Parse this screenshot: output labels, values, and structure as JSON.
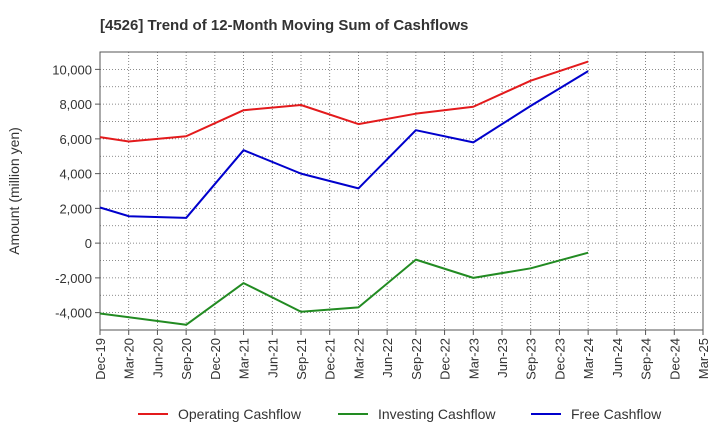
{
  "chart_data": {
    "type": "line",
    "title": "[4526]  Trend of 12-Month Moving Sum of Cashflows",
    "xlabel": "",
    "ylabel": "Amount (million yen)",
    "ylim": [
      -5000,
      11000
    ],
    "yticks": [
      -4000,
      -2000,
      0,
      2000,
      4000,
      6000,
      8000,
      10000
    ],
    "ytick_labels": [
      "-4,000",
      "-2,000",
      "0",
      "2,000",
      "4,000",
      "6,000",
      "8,000",
      "10,000"
    ],
    "categories": [
      "Dec-19",
      "Mar-20",
      "Jun-20",
      "Sep-20",
      "Dec-20",
      "Mar-21",
      "Jun-21",
      "Sep-21",
      "Dec-21",
      "Mar-22",
      "Jun-22",
      "Sep-22",
      "Dec-22",
      "Mar-23",
      "Jun-23",
      "Sep-23",
      "Dec-23",
      "Mar-24",
      "Jun-24",
      "Sep-24",
      "Dec-24",
      "Mar-25"
    ],
    "grid": true,
    "legend_position": "bottom",
    "series": [
      {
        "name": "Operating Cashflow",
        "color": "#e31a1c",
        "points": [
          [
            0,
            6100
          ],
          [
            1,
            5850
          ],
          [
            3,
            6150
          ],
          [
            5,
            7650
          ],
          [
            7,
            7950
          ],
          [
            9,
            6850
          ],
          [
            11,
            7450
          ],
          [
            13,
            7850
          ],
          [
            15,
            9350
          ],
          [
            17,
            10450
          ]
        ]
      },
      {
        "name": "Investing Cashflow",
        "color": "#228b22",
        "points": [
          [
            0,
            -4050
          ],
          [
            3,
            -4700
          ],
          [
            5,
            -2300
          ],
          [
            7,
            -3950
          ],
          [
            9,
            -3700
          ],
          [
            11,
            -950
          ],
          [
            13,
            -2000
          ],
          [
            15,
            -1450
          ],
          [
            17,
            -550
          ]
        ]
      },
      {
        "name": "Free Cashflow",
        "color": "#0000cc",
        "points": [
          [
            0,
            2050
          ],
          [
            1,
            1550
          ],
          [
            3,
            1450
          ],
          [
            5,
            5350
          ],
          [
            7,
            4000
          ],
          [
            9,
            3150
          ],
          [
            11,
            6500
          ],
          [
            13,
            5800
          ],
          [
            15,
            7900
          ],
          [
            17,
            9900
          ]
        ]
      }
    ]
  }
}
